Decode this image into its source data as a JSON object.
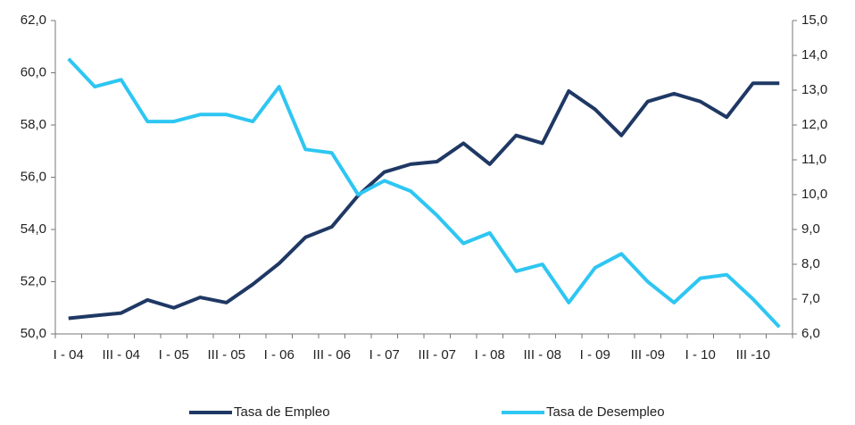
{
  "chart_data": {
    "type": "line",
    "categories": [
      "I - 04",
      null,
      "III - 04",
      null,
      "I - 05",
      null,
      "III - 05",
      null,
      "I - 06",
      null,
      "III - 06",
      null,
      "I - 07",
      null,
      "III - 07",
      null,
      "I - 08",
      null,
      "III - 08",
      null,
      "I - 09",
      null,
      "III -09",
      null,
      "I - 10",
      null,
      "III -10",
      null
    ],
    "series": [
      {
        "name": "Tasa de Empleo",
        "color": "#1f3864",
        "values": [
          50.6,
          50.7,
          50.8,
          51.3,
          51.0,
          51.4,
          51.2,
          51.9,
          52.7,
          53.7,
          54.1,
          55.3,
          56.2,
          56.5,
          56.6,
          57.3,
          56.5,
          57.6,
          57.3,
          59.3,
          58.6,
          57.6,
          58.9,
          59.2,
          58.9,
          58.3,
          59.6,
          59.6
        ]
      },
      {
        "name": "Tasa de Desempleo",
        "color": "#2ec6f2",
        "axis": "y2",
        "values": [
          13.9,
          13.1,
          13.3,
          12.1,
          12.1,
          12.3,
          12.3,
          12.1,
          13.1,
          11.3,
          11.2,
          10.0,
          10.4,
          10.1,
          9.4,
          8.6,
          8.9,
          7.8,
          8.0,
          6.9,
          7.9,
          8.3,
          7.5,
          6.9,
          7.6,
          7.7,
          7.0,
          6.2
        ]
      }
    ],
    "ylim": [
      50,
      62
    ],
    "yticks": [
      {
        "value": 50,
        "label": "50,0"
      },
      {
        "value": 52,
        "label": "52,0"
      },
      {
        "value": 54,
        "label": "54,0"
      },
      {
        "value": 56,
        "label": "56,0"
      },
      {
        "value": 58,
        "label": "58,0"
      },
      {
        "value": 60,
        "label": "60,0"
      },
      {
        "value": 62,
        "label": "62,0"
      }
    ],
    "y2lim": [
      6,
      15
    ],
    "y2ticks": [
      {
        "value": 6,
        "label": "6,0"
      },
      {
        "value": 7,
        "label": "7,0"
      },
      {
        "value": 8,
        "label": "8,0"
      },
      {
        "value": 9,
        "label": "9,0"
      },
      {
        "value": 10,
        "label": "10,0"
      },
      {
        "value": 11,
        "label": "11,0"
      },
      {
        "value": 12,
        "label": "12,0"
      },
      {
        "value": 13,
        "label": "13,0"
      },
      {
        "value": 14,
        "label": "14,0"
      },
      {
        "value": 15,
        "label": "15,0"
      }
    ],
    "grid": false,
    "legend": "bottom"
  }
}
